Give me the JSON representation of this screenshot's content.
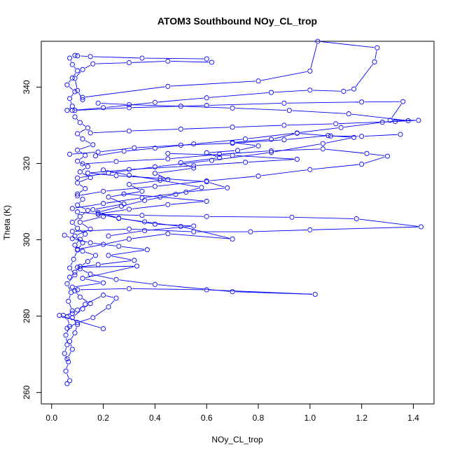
{
  "chart_data": {
    "type": "scatter",
    "title": "ATOM3 Southbound NOy_CL_trop",
    "xlabel": "NOy_CL_trop",
    "ylabel": "Theta (K)",
    "xlim": [
      -0.04,
      1.48
    ],
    "ylim": [
      257,
      352
    ],
    "x_ticks": [
      "0.0",
      "0.2",
      "0.4",
      "0.6",
      "0.8",
      "1.0",
      "1.2",
      "1.4"
    ],
    "y_ticks": [
      "260",
      "280",
      "300",
      "320",
      "340"
    ],
    "grid": false,
    "legend": "none",
    "style": "points connected by lines (type='b')",
    "series": [
      {
        "values": [
          [
            0.06,
            262.3
          ],
          [
            0.07,
            263.1
          ],
          [
            0.055,
            265.6
          ],
          [
            0.065,
            268.0
          ],
          [
            0.05,
            270.2
          ],
          [
            0.06,
            272.5
          ],
          [
            0.055,
            275.0
          ],
          [
            0.07,
            277.3
          ],
          [
            0.06,
            279.8
          ],
          [
            0.08,
            281.4
          ],
          [
            0.065,
            283.9
          ],
          [
            0.075,
            286.2
          ],
          [
            0.06,
            288.5
          ],
          [
            0.09,
            290.8
          ],
          [
            0.07,
            292.6
          ],
          [
            0.085,
            294.9
          ],
          [
            0.1,
            297.3
          ],
          [
            0.12,
            299.2
          ],
          [
            0.09,
            301.0
          ],
          [
            0.15,
            302.8
          ],
          [
            0.11,
            304.6
          ],
          [
            0.2,
            306.1
          ],
          [
            0.16,
            307.9
          ],
          [
            0.28,
            309.4
          ],
          [
            0.22,
            311.2
          ],
          [
            0.35,
            312.7
          ],
          [
            0.3,
            314.5
          ],
          [
            0.45,
            315.8
          ],
          [
            0.4,
            317.4
          ],
          [
            0.55,
            318.8
          ],
          [
            0.5,
            320.2
          ],
          [
            0.65,
            321.5
          ],
          [
            0.6,
            322.8
          ],
          [
            0.72,
            323.4
          ],
          [
            0.8,
            324.6
          ],
          [
            0.7,
            325.5
          ],
          [
            0.85,
            326.3
          ],
          [
            0.95,
            327.9
          ],
          [
            1.08,
            327.2
          ],
          [
            1.2,
            327.1
          ],
          [
            1.35,
            327.6
          ]
        ]
      },
      {
        "values": [
          [
            0.1,
            286.9
          ],
          [
            0.3,
            287.2
          ],
          [
            0.6,
            286.9
          ],
          [
            1.02,
            285.7
          ],
          [
            0.7,
            286.4
          ],
          [
            0.4,
            288.3
          ],
          [
            0.25,
            289.6
          ],
          [
            0.15,
            291.0
          ],
          [
            0.11,
            292.4
          ]
        ]
      },
      {
        "values": [
          [
            0.08,
            302.2
          ],
          [
            0.3,
            302.8
          ],
          [
            0.55,
            302.1
          ],
          [
            0.77,
            302.1
          ],
          [
            1.0,
            302.6
          ],
          [
            1.43,
            303.4
          ],
          [
            1.18,
            305.5
          ],
          [
            0.93,
            305.9
          ],
          [
            0.6,
            306.1
          ],
          [
            0.35,
            306.4
          ],
          [
            0.18,
            306.7
          ],
          [
            0.1,
            307.3
          ]
        ]
      },
      {
        "values": [
          [
            0.09,
            333.9
          ],
          [
            0.3,
            334.6
          ],
          [
            0.6,
            335.2
          ],
          [
            0.9,
            335.8
          ],
          [
            1.2,
            336.1
          ],
          [
            1.36,
            336.2
          ],
          [
            1.31,
            331.3
          ],
          [
            1.42,
            331.3
          ],
          [
            1.33,
            331.0
          ],
          [
            1.1,
            330.4
          ],
          [
            0.9,
            330.0
          ],
          [
            0.7,
            329.5
          ],
          [
            0.5,
            329.0
          ],
          [
            0.3,
            328.5
          ],
          [
            0.15,
            328.0
          ]
        ]
      },
      {
        "values": [
          [
            0.1,
            348.2
          ],
          [
            0.15,
            348.0
          ],
          [
            0.35,
            347.6
          ],
          [
            0.6,
            347.4
          ],
          [
            0.62,
            346.5
          ],
          [
            0.45,
            346.8
          ],
          [
            0.3,
            346.4
          ],
          [
            0.16,
            346.1
          ],
          [
            0.12,
            344.6
          ],
          [
            0.09,
            342.3
          ],
          [
            0.1,
            339.1
          ],
          [
            0.12,
            336.7
          ]
        ]
      },
      {
        "values": [
          [
            0.12,
            337.3
          ],
          [
            0.45,
            340.2
          ],
          [
            0.8,
            341.6
          ],
          [
            1.0,
            344.2
          ],
          [
            1.03,
            352.0
          ],
          [
            1.26,
            350.3
          ],
          [
            1.25,
            346.6
          ],
          [
            1.17,
            339.5
          ],
          [
            1.13,
            338.9
          ],
          [
            1.0,
            339.2
          ],
          [
            0.85,
            338.6
          ],
          [
            0.6,
            337.2
          ],
          [
            0.4,
            336.0
          ],
          [
            0.2,
            334.6
          ],
          [
            0.08,
            333.9
          ]
        ]
      },
      {
        "values": [
          [
            0.06,
            276.8
          ],
          [
            0.1,
            278.3
          ],
          [
            0.16,
            279.6
          ],
          [
            0.22,
            282.4
          ],
          [
            0.25,
            284.7
          ],
          [
            0.2,
            285.5
          ],
          [
            0.13,
            283.1
          ],
          [
            0.1,
            281.6
          ],
          [
            0.08,
            280.7
          ],
          [
            0.045,
            280.2
          ],
          [
            0.03,
            280.2
          ],
          [
            0.2,
            276.7
          ]
        ]
      },
      {
        "values": [
          [
            0.05,
            301.2
          ],
          [
            0.08,
            300.3
          ],
          [
            0.15,
            299.2
          ],
          [
            0.26,
            298.3
          ],
          [
            0.37,
            297.4
          ],
          [
            0.22,
            295.9
          ],
          [
            0.32,
            294.6
          ],
          [
            0.18,
            293.5
          ],
          [
            0.1,
            292.8
          ],
          [
            0.33,
            293.1
          ],
          [
            0.12,
            289.9
          ],
          [
            0.2,
            288.7
          ],
          [
            0.08,
            287.6
          ]
        ]
      },
      {
        "values": [
          [
            0.12,
            319.9
          ],
          [
            0.25,
            320.5
          ],
          [
            0.45,
            321.2
          ],
          [
            0.65,
            322.4
          ],
          [
            0.85,
            323.3
          ],
          [
            1.05,
            323.8
          ],
          [
            1.22,
            322.6
          ],
          [
            1.3,
            321.9
          ],
          [
            1.2,
            319.8
          ],
          [
            1.0,
            318.4
          ],
          [
            0.8,
            316.7
          ],
          [
            0.6,
            315.4
          ],
          [
            0.4,
            314.0
          ],
          [
            0.2,
            312.7
          ],
          [
            0.1,
            311.5
          ]
        ]
      },
      {
        "values": [
          [
            0.07,
            322.4
          ],
          [
            0.18,
            323.0
          ],
          [
            0.32,
            324.1
          ],
          [
            0.5,
            324.8
          ],
          [
            0.7,
            325.3
          ],
          [
            0.9,
            326.2
          ],
          [
            1.07,
            327.3
          ],
          [
            1.17,
            326.8
          ],
          [
            1.05,
            325.2
          ],
          [
            0.85,
            322.9
          ],
          [
            0.62,
            320.8
          ],
          [
            0.4,
            319.1
          ],
          [
            0.22,
            317.5
          ],
          [
            0.1,
            316.2
          ]
        ]
      },
      {
        "values": [
          [
            0.08,
            308.2
          ],
          [
            0.2,
            309.5
          ],
          [
            0.35,
            311.0
          ],
          [
            0.52,
            312.5
          ],
          [
            0.68,
            313.6
          ],
          [
            0.6,
            315.2
          ],
          [
            0.42,
            316.1
          ],
          [
            0.25,
            316.8
          ],
          [
            0.14,
            317.5
          ],
          [
            0.3,
            318.4
          ],
          [
            0.55,
            319.4
          ],
          [
            0.75,
            320.3
          ],
          [
            0.95,
            321.1
          ],
          [
            0.7,
            322.1
          ],
          [
            0.45,
            322.6
          ]
        ]
      },
      {
        "values": [
          [
            0.1,
            297.5
          ],
          [
            0.2,
            298.8
          ],
          [
            0.3,
            300.2
          ],
          [
            0.45,
            301.6
          ],
          [
            0.7,
            300.2
          ],
          [
            0.5,
            303.5
          ],
          [
            0.36,
            304.7
          ],
          [
            0.26,
            305.6
          ],
          [
            0.18,
            306.8
          ],
          [
            0.3,
            308.0
          ],
          [
            0.45,
            309.2
          ],
          [
            0.6,
            310.1
          ],
          [
            0.42,
            311.2
          ],
          [
            0.28,
            312.0
          ]
        ]
      },
      {
        "values": [
          [
            0.07,
            290.2
          ],
          [
            0.09,
            291.5
          ],
          [
            0.11,
            293.0
          ],
          [
            0.14,
            294.3
          ],
          [
            0.17,
            295.9
          ],
          [
            0.12,
            297.0
          ],
          [
            0.09,
            298.6
          ],
          [
            0.11,
            300.1
          ],
          [
            0.13,
            301.5
          ],
          [
            0.1,
            303.0
          ],
          [
            0.08,
            304.6
          ],
          [
            0.11,
            306.1
          ],
          [
            0.14,
            307.7
          ],
          [
            0.1,
            309.1
          ],
          [
            0.12,
            310.6
          ]
        ]
      },
      {
        "values": [
          [
            0.1,
            312.0
          ],
          [
            0.13,
            313.4
          ],
          [
            0.1,
            314.9
          ],
          [
            0.15,
            316.3
          ],
          [
            0.11,
            317.8
          ],
          [
            0.14,
            319.2
          ],
          [
            0.1,
            320.6
          ],
          [
            0.13,
            322.1
          ],
          [
            0.1,
            323.5
          ],
          [
            0.16,
            324.9
          ],
          [
            0.12,
            326.4
          ],
          [
            0.1,
            327.8
          ],
          [
            0.14,
            329.3
          ],
          [
            0.11,
            330.7
          ],
          [
            0.09,
            332.2
          ]
        ]
      },
      {
        "values": [
          [
            0.06,
            333.9
          ],
          [
            0.08,
            335.0
          ],
          [
            0.07,
            337.0
          ],
          [
            0.09,
            338.8
          ],
          [
            0.06,
            340.6
          ],
          [
            0.08,
            342.4
          ],
          [
            0.1,
            344.3
          ],
          [
            0.08,
            345.9
          ],
          [
            0.07,
            347.6
          ],
          [
            0.09,
            348.3
          ]
        ]
      },
      {
        "values": [
          [
            0.17,
            322.0
          ],
          [
            0.28,
            323.2
          ],
          [
            0.4,
            324.0
          ],
          [
            0.55,
            325.1
          ],
          [
            0.75,
            326.4
          ],
          [
            0.95,
            328.0
          ],
          [
            1.12,
            329.4
          ],
          [
            1.28,
            330.8
          ],
          [
            1.38,
            331.2
          ],
          [
            1.15,
            333.0
          ],
          [
            0.92,
            333.9
          ],
          [
            0.7,
            334.5
          ],
          [
            0.5,
            335.0
          ],
          [
            0.3,
            335.4
          ],
          [
            0.18,
            335.8
          ]
        ]
      },
      {
        "values": [
          [
            0.06,
            268.8
          ],
          [
            0.08,
            271.3
          ],
          [
            0.07,
            273.4
          ],
          [
            0.09,
            275.6
          ],
          [
            0.1,
            277.8
          ],
          [
            0.08,
            279.6
          ],
          [
            0.12,
            281.9
          ],
          [
            0.15,
            283.3
          ],
          [
            0.11,
            285.0
          ],
          [
            0.09,
            286.6
          ]
        ]
      },
      {
        "values": [
          [
            0.2,
            318.3
          ],
          [
            0.3,
            316.9
          ],
          [
            0.42,
            315.6
          ],
          [
            0.58,
            313.7
          ],
          [
            0.48,
            311.9
          ],
          [
            0.36,
            310.3
          ],
          [
            0.27,
            308.8
          ],
          [
            0.18,
            307.2
          ],
          [
            0.26,
            305.7
          ],
          [
            0.4,
            304.1
          ],
          [
            0.55,
            303.6
          ],
          [
            0.36,
            302.4
          ],
          [
            0.22,
            301.0
          ]
        ]
      }
    ]
  },
  "colors": {
    "series": "#0000ff",
    "axes": "#000000",
    "background": "#ffffff"
  }
}
